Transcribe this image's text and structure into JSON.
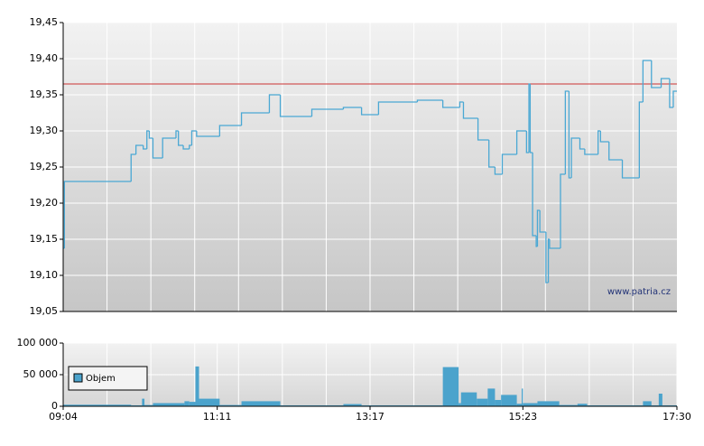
{
  "chart_data": [
    {
      "type": "step-line",
      "color": "#4aa8d4",
      "x": [
        "09:04",
        "09:05",
        "10:00",
        "10:04",
        "10:10",
        "10:13",
        "10:15",
        "10:18",
        "10:26",
        "10:37",
        "10:39",
        "10:43",
        "10:48",
        "10:50",
        "10:54",
        "11:13",
        "11:31",
        "11:54",
        "12:03",
        "12:29",
        "12:55",
        "13:10",
        "13:24",
        "13:56",
        "14:17",
        "14:31",
        "14:34",
        "14:46",
        "14:55",
        "15:00",
        "15:06",
        "15:18",
        "15:26",
        "15:28",
        "15:29",
        "15:31",
        "15:34",
        "15:35",
        "15:37",
        "15:42",
        "15:44",
        "15:45",
        "15:54",
        "15:58",
        "16:01",
        "16:03",
        "16:10",
        "16:14",
        "16:25",
        "16:27",
        "16:34",
        "16:45",
        "16:59",
        "17:02",
        "17:09",
        "17:17",
        "17:24",
        "17:27"
      ],
      "values": [
        19.1375,
        19.23,
        19.2675,
        19.28,
        19.275,
        19.3,
        19.29,
        19.2625,
        19.29,
        19.3,
        19.28,
        19.275,
        19.28,
        19.3,
        19.2925,
        19.3075,
        19.325,
        19.35,
        19.32,
        19.33,
        19.3325,
        19.3225,
        19.34,
        19.3425,
        19.3325,
        19.34,
        19.3175,
        19.2875,
        19.25,
        19.24,
        19.2675,
        19.3,
        19.27,
        19.365,
        19.27,
        19.155,
        19.14,
        19.19,
        19.16,
        19.09,
        19.15,
        19.1375,
        19.24,
        19.355,
        19.235,
        19.29,
        19.275,
        19.2675,
        19.3,
        19.285,
        19.26,
        19.235,
        19.34,
        19.3975,
        19.36,
        19.3725,
        19.3325,
        19.355
      ],
      "xlim": [
        "09:04",
        "17:30"
      ],
      "ylim": [
        19.05,
        19.45
      ],
      "yticks": [
        {
          "value": 19.05,
          "label": "19,05"
        },
        {
          "value": 19.1,
          "label": "19,10"
        },
        {
          "value": 19.15,
          "label": "19,15"
        },
        {
          "value": 19.2,
          "label": "19,20"
        },
        {
          "value": 19.25,
          "label": "19,25"
        },
        {
          "value": 19.3,
          "label": "19,30"
        },
        {
          "value": 19.35,
          "label": "19,35"
        },
        {
          "value": 19.4,
          "label": "19,40"
        },
        {
          "value": 19.45,
          "label": "19,45"
        }
      ],
      "reference_line": {
        "value": 19.365,
        "color": "#cc3333"
      },
      "annotation": "www.patria.cz"
    },
    {
      "type": "histogram",
      "bins": [
        "09:04",
        "10:00",
        "10:09",
        "10:11",
        "10:18",
        "10:44",
        "10:48",
        "10:53",
        "10:56",
        "11:13",
        "11:31",
        "12:03",
        "12:55",
        "13:10",
        "14:17",
        "14:30",
        "14:32",
        "14:45",
        "14:54",
        "15:00",
        "15:05",
        "15:18",
        "15:22",
        "15:23",
        "15:35",
        "15:53",
        "16:08",
        "16:16",
        "17:02",
        "17:09",
        "17:15",
        "17:18",
        "17:30"
      ],
      "series": [
        {
          "name": "Objem",
          "color": "#4ba3cc",
          "values": [
            2500,
            1500,
            12000,
            2000,
            5000,
            8000,
            7000,
            63000,
            12000,
            2000,
            8000,
            1500,
            3500,
            1500,
            62000,
            5000,
            22000,
            12000,
            28000,
            10000,
            18000,
            4000,
            28000,
            5000,
            8000,
            2000,
            4000,
            1500,
            8000,
            1500,
            20000,
            1500
          ]
        }
      ],
      "xlim": [
        "09:04",
        "17:30"
      ],
      "xticks": [
        "09:04",
        "11:11",
        "13:17",
        "15:23",
        "17:30"
      ],
      "ylim": [
        0,
        100000
      ],
      "yticks": [
        0,
        {
          "value": 50000,
          "label": "50 000"
        },
        {
          "value": 100000,
          "label": "100 000"
        }
      ]
    }
  ]
}
